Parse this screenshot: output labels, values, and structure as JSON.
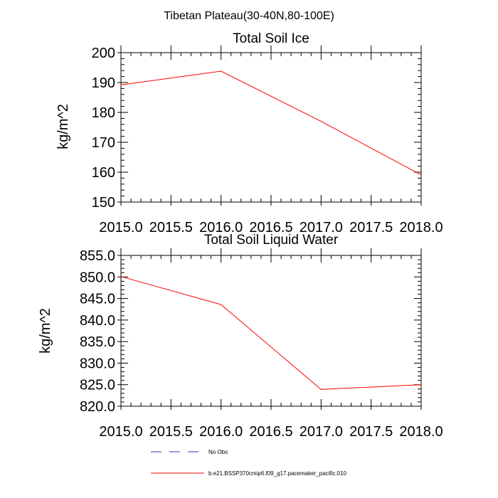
{
  "figure_title": "Tibetan Plateau(30-40N,80-100E)",
  "colors": {
    "model_line": "#ff0000",
    "obs_line": "#3333aa",
    "axis": "#000000"
  },
  "chart_data": [
    {
      "type": "line",
      "title": "Total Soil Ice",
      "xlabel": "",
      "ylabel": "kg/m^2",
      "xlim": [
        2015.0,
        2018.0
      ],
      "ylim": [
        150,
        200
      ],
      "xticks": [
        2015.0,
        2015.5,
        2016.0,
        2016.5,
        2017.0,
        2017.5,
        2018.0
      ],
      "xtick_labels": [
        "2015.0",
        "2015.5",
        "2016.0",
        "2016.5",
        "2017.0",
        "2017.5",
        "2018.0"
      ],
      "yticks": [
        150,
        160,
        170,
        180,
        190,
        200
      ],
      "ytick_labels": [
        "150",
        "160",
        "170",
        "180",
        "190",
        "200"
      ],
      "series": [
        {
          "name": "b.e21.BSSP370cmip6.f09_g17.pacemaker_pacific.010",
          "x": [
            2015,
            2016,
            2017,
            2018
          ],
          "values": [
            189.2,
            193.8,
            177.0,
            159.1
          ]
        }
      ]
    },
    {
      "type": "line",
      "title": "Total Soil Liquid Water",
      "xlabel": "",
      "ylabel": "kg/m^2",
      "xlim": [
        2015.0,
        2018.0
      ],
      "ylim": [
        820.0,
        855.0
      ],
      "xticks": [
        2015.0,
        2015.5,
        2016.0,
        2016.5,
        2017.0,
        2017.5,
        2018.0
      ],
      "xtick_labels": [
        "2015.0",
        "2015.5",
        "2016.0",
        "2016.5",
        "2017.0",
        "2017.5",
        "2018.0"
      ],
      "yticks": [
        820.0,
        825.0,
        830.0,
        835.0,
        840.0,
        845.0,
        850.0,
        855.0
      ],
      "ytick_labels": [
        "820.0",
        "825.0",
        "830.0",
        "835.0",
        "840.0",
        "845.0",
        "850.0",
        "855.0"
      ],
      "series": [
        {
          "name": "b.e21.BSSP370cmip6.f09_g17.pacemaker_pacific.010",
          "x": [
            2015,
            2016,
            2017,
            2018
          ],
          "values": [
            850.1,
            843.6,
            823.9,
            825.0
          ]
        }
      ]
    }
  ],
  "legend": [
    {
      "label": "No Obs",
      "style": "dashed",
      "color_key": "obs_line"
    },
    {
      "label": "b.e21.BSSP370cmip6.f09_g17.pacemaker_pacific.010",
      "style": "solid",
      "color_key": "model_line"
    }
  ]
}
